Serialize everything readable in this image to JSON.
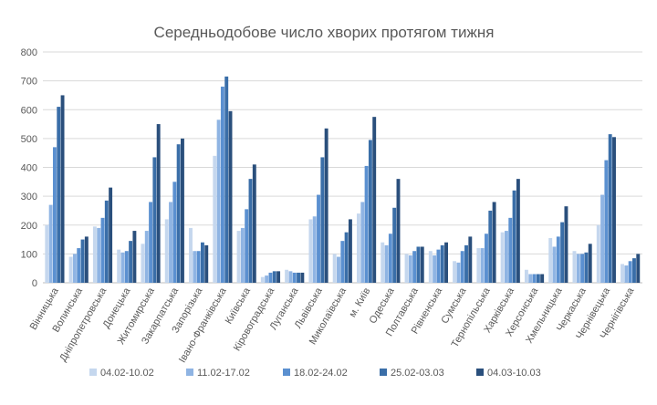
{
  "chart_data": {
    "type": "bar",
    "title": "Середньодобове  число хворих протягом тижня",
    "xlabel": "",
    "ylabel": "",
    "ylim": [
      0,
      800
    ],
    "yticks": [
      0,
      100,
      200,
      300,
      400,
      500,
      600,
      700,
      800
    ],
    "grid": true,
    "legend_position": "bottom",
    "categories": [
      "Вінницька",
      "Волинська",
      "Дніпропетровська",
      "Донецька",
      "Житомирська",
      "Закарпатська",
      "Запорізька",
      "Івано-Франківська",
      "Київська",
      "Кіровоградська",
      "Луганська",
      "Львівська",
      "Миколаївська",
      "м. Київ",
      "Одеська",
      "Полтавська",
      "Рівненська",
      "Сумська",
      "Тернопільська",
      "Харківська",
      "Херсонська",
      "Хмельницька",
      "Черкаська",
      "Чернівецька",
      "Чернігівська"
    ],
    "series": [
      {
        "name": "04.02-10.02",
        "color": "#c5d7ee",
        "values": [
          200,
          90,
          195,
          115,
          135,
          220,
          190,
          440,
          180,
          20,
          45,
          220,
          100,
          240,
          140,
          100,
          110,
          75,
          120,
          175,
          45,
          155,
          110,
          200,
          65
        ]
      },
      {
        "name": "11.02-17.02",
        "color": "#8fb4e3",
        "values": [
          270,
          100,
          190,
          105,
          180,
          280,
          110,
          565,
          190,
          25,
          40,
          230,
          90,
          280,
          130,
          95,
          95,
          70,
          120,
          180,
          30,
          125,
          100,
          305,
          60
        ]
      },
      {
        "name": "18.02-24.02",
        "color": "#5b90d0",
        "values": [
          470,
          120,
          225,
          110,
          280,
          350,
          110,
          680,
          255,
          35,
          35,
          305,
          145,
          405,
          170,
          110,
          115,
          110,
          170,
          225,
          30,
          160,
          100,
          425,
          75
        ]
      },
      {
        "name": "25.02-03.03",
        "color": "#3a6ea8",
        "values": [
          610,
          150,
          285,
          145,
          435,
          480,
          140,
          715,
          360,
          40,
          35,
          435,
          175,
          495,
          260,
          125,
          130,
          130,
          250,
          320,
          30,
          210,
          105,
          515,
          85
        ]
      },
      {
        "name": "04.03-10.03",
        "color": "#2a4f7c",
        "values": [
          650,
          160,
          330,
          180,
          550,
          500,
          130,
          595,
          410,
          40,
          35,
          535,
          220,
          575,
          360,
          125,
          140,
          160,
          280,
          360,
          30,
          265,
          135,
          505,
          100
        ]
      }
    ]
  }
}
